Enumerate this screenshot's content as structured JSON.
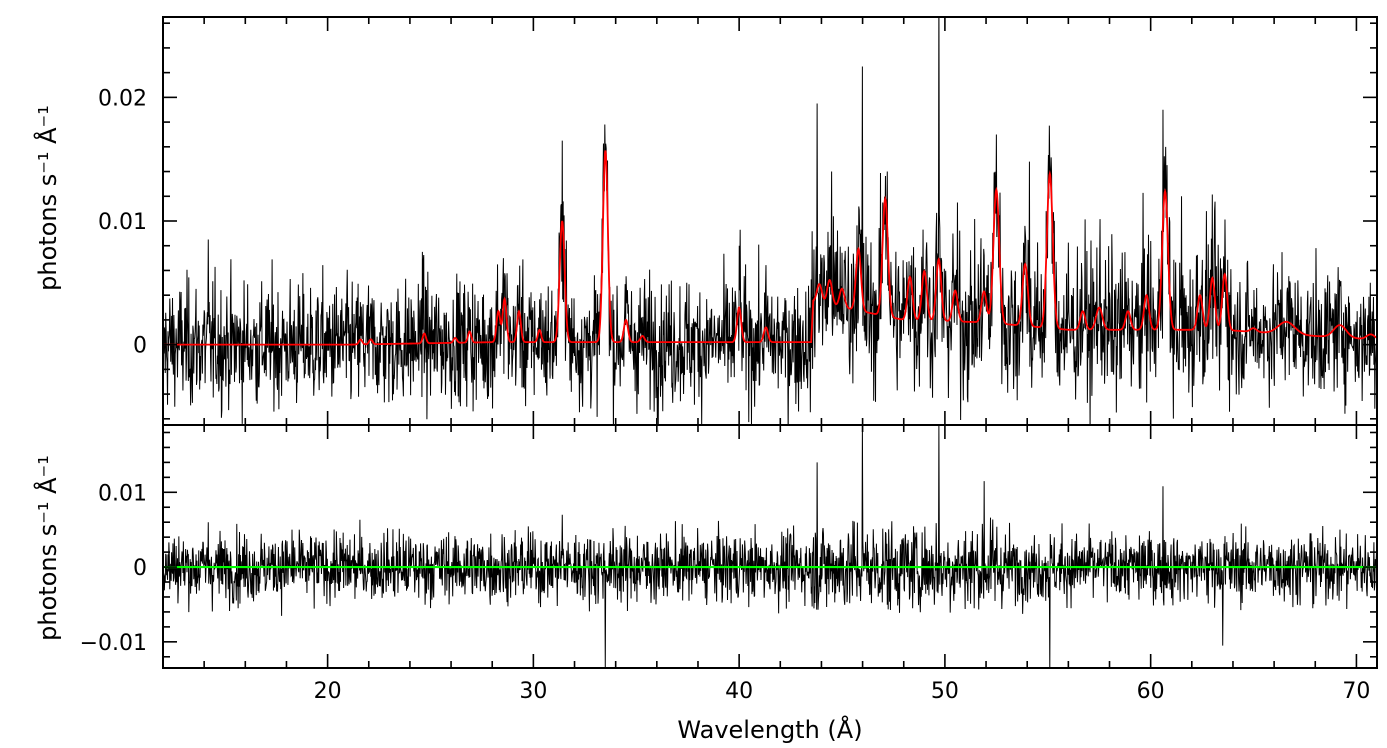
{
  "chart_data": [
    {
      "type": "line",
      "panel": "top",
      "ylabel": "photons s⁻¹ Å⁻¹",
      "xlim": [
        12,
        71
      ],
      "ylim": [
        -0.0065,
        0.0265
      ],
      "yticks": [
        0,
        0.01,
        0.02
      ],
      "ytick_labels": [
        "0",
        "0.01",
        "0.02"
      ],
      "grid": false,
      "colors": {
        "data": "#000000",
        "model": "#ff0000"
      },
      "noise_sigma": 0.0025,
      "series": [
        {
          "role": "data",
          "color": "#000000",
          "x": [
            14.2,
            24.6,
            31.4,
            33.5,
            40.0,
            43.8,
            44.5,
            46.0,
            47.2,
            49.7,
            52.5,
            54.1,
            55.1,
            60.6,
            61.5,
            62.7
          ],
          "y": [
            0.0085,
            0.0075,
            0.0165,
            0.015,
            0.008,
            0.0195,
            0.014,
            0.0225,
            0.014,
            0.029,
            0.017,
            0.0148,
            0.0145,
            0.019,
            0.012,
            0.0108
          ]
        },
        {
          "role": "model",
          "color": "#ff0000",
          "baseline": [
            [
              12,
              0.0
            ],
            [
              21,
              0.0
            ],
            [
              28,
              0.0002
            ],
            [
              43.5,
              0.0002
            ],
            [
              43.6,
              0.0035
            ],
            [
              48,
              0.002
            ],
            [
              52,
              0.0018
            ],
            [
              56,
              0.0012
            ],
            [
              63.5,
              0.0012
            ],
            [
              67,
              0.0008
            ],
            [
              71,
              0.0004
            ]
          ],
          "peaks": [
            {
              "x": 21.6,
              "y": 0.0004,
              "w": 0.08
            },
            {
              "x": 22.1,
              "y": 0.0004,
              "w": 0.08
            },
            {
              "x": 24.7,
              "y": 0.0008,
              "w": 0.08
            },
            {
              "x": 26.2,
              "y": 0.0004,
              "w": 0.08
            },
            {
              "x": 26.9,
              "y": 0.0009,
              "w": 0.08
            },
            {
              "x": 28.3,
              "y": 0.0025,
              "w": 0.09
            },
            {
              "x": 28.6,
              "y": 0.0035,
              "w": 0.09
            },
            {
              "x": 29.3,
              "y": 0.0025,
              "w": 0.09
            },
            {
              "x": 30.3,
              "y": 0.001,
              "w": 0.08
            },
            {
              "x": 31.4,
              "y": 0.0098,
              "w": 0.12
            },
            {
              "x": 33.5,
              "y": 0.0155,
              "w": 0.12
            },
            {
              "x": 34.5,
              "y": 0.0018,
              "w": 0.1
            },
            {
              "x": 35.3,
              "y": 0.0005,
              "w": 0.1
            },
            {
              "x": 40.0,
              "y": 0.0028,
              "w": 0.1
            },
            {
              "x": 41.3,
              "y": 0.0012,
              "w": 0.1
            },
            {
              "x": 43.9,
              "y": 0.0015,
              "w": 0.12
            },
            {
              "x": 44.4,
              "y": 0.002,
              "w": 0.12
            },
            {
              "x": 45.0,
              "y": 0.0015,
              "w": 0.12
            },
            {
              "x": 45.8,
              "y": 0.005,
              "w": 0.12
            },
            {
              "x": 47.1,
              "y": 0.0095,
              "w": 0.13
            },
            {
              "x": 48.3,
              "y": 0.0035,
              "w": 0.12
            },
            {
              "x": 49.0,
              "y": 0.004,
              "w": 0.12
            },
            {
              "x": 49.7,
              "y": 0.005,
              "w": 0.12
            },
            {
              "x": 50.5,
              "y": 0.0025,
              "w": 0.12
            },
            {
              "x": 51.9,
              "y": 0.0025,
              "w": 0.12
            },
            {
              "x": 52.5,
              "y": 0.0108,
              "w": 0.14
            },
            {
              "x": 53.9,
              "y": 0.005,
              "w": 0.13
            },
            {
              "x": 55.1,
              "y": 0.0125,
              "w": 0.14
            },
            {
              "x": 56.7,
              "y": 0.0015,
              "w": 0.12
            },
            {
              "x": 57.5,
              "y": 0.0018,
              "w": 0.15
            },
            {
              "x": 58.9,
              "y": 0.0015,
              "w": 0.12
            },
            {
              "x": 59.8,
              "y": 0.0028,
              "w": 0.12
            },
            {
              "x": 60.7,
              "y": 0.0112,
              "w": 0.14
            },
            {
              "x": 62.4,
              "y": 0.0028,
              "w": 0.12
            },
            {
              "x": 63.0,
              "y": 0.0042,
              "w": 0.12
            },
            {
              "x": 63.6,
              "y": 0.0045,
              "w": 0.12
            },
            {
              "x": 65.0,
              "y": 0.0003,
              "w": 0.15
            },
            {
              "x": 66.6,
              "y": 0.001,
              "w": 0.4
            },
            {
              "x": 69.2,
              "y": 0.001,
              "w": 0.3
            },
            {
              "x": 70.7,
              "y": 0.0004,
              "w": 0.2
            }
          ]
        }
      ]
    },
    {
      "type": "line",
      "panel": "bottom",
      "xlabel": "Wavelength (Å)",
      "ylabel": "photons s⁻¹ Å⁻¹",
      "xlim": [
        12,
        71
      ],
      "ylim": [
        -0.0135,
        0.019
      ],
      "xticks": [
        20,
        30,
        40,
        50,
        60,
        70
      ],
      "xtick_labels": [
        "20",
        "30",
        "40",
        "50",
        "60",
        "70"
      ],
      "yticks": [
        -0.01,
        0,
        0.01
      ],
      "ytick_labels": [
        "−0.01",
        "0",
        "0.01"
      ],
      "grid": false,
      "colors": {
        "data": "#000000",
        "zero_line": "#00ff00"
      },
      "noise_sigma": 0.0023,
      "series": [
        {
          "role": "residuals",
          "color": "#000000",
          "x": [
            14.2,
            31.4,
            33.5,
            43.8,
            46.0,
            49.7,
            51.9,
            55.1,
            60.6,
            63.5
          ],
          "y": [
            0.006,
            0.007,
            -0.0135,
            0.014,
            0.019,
            0.019,
            0.0115,
            -0.014,
            0.0108,
            -0.0105
          ]
        },
        {
          "role": "zero-line",
          "color": "#00ff00",
          "x": [
            12,
            71
          ],
          "y": [
            0,
            0
          ]
        }
      ]
    }
  ]
}
